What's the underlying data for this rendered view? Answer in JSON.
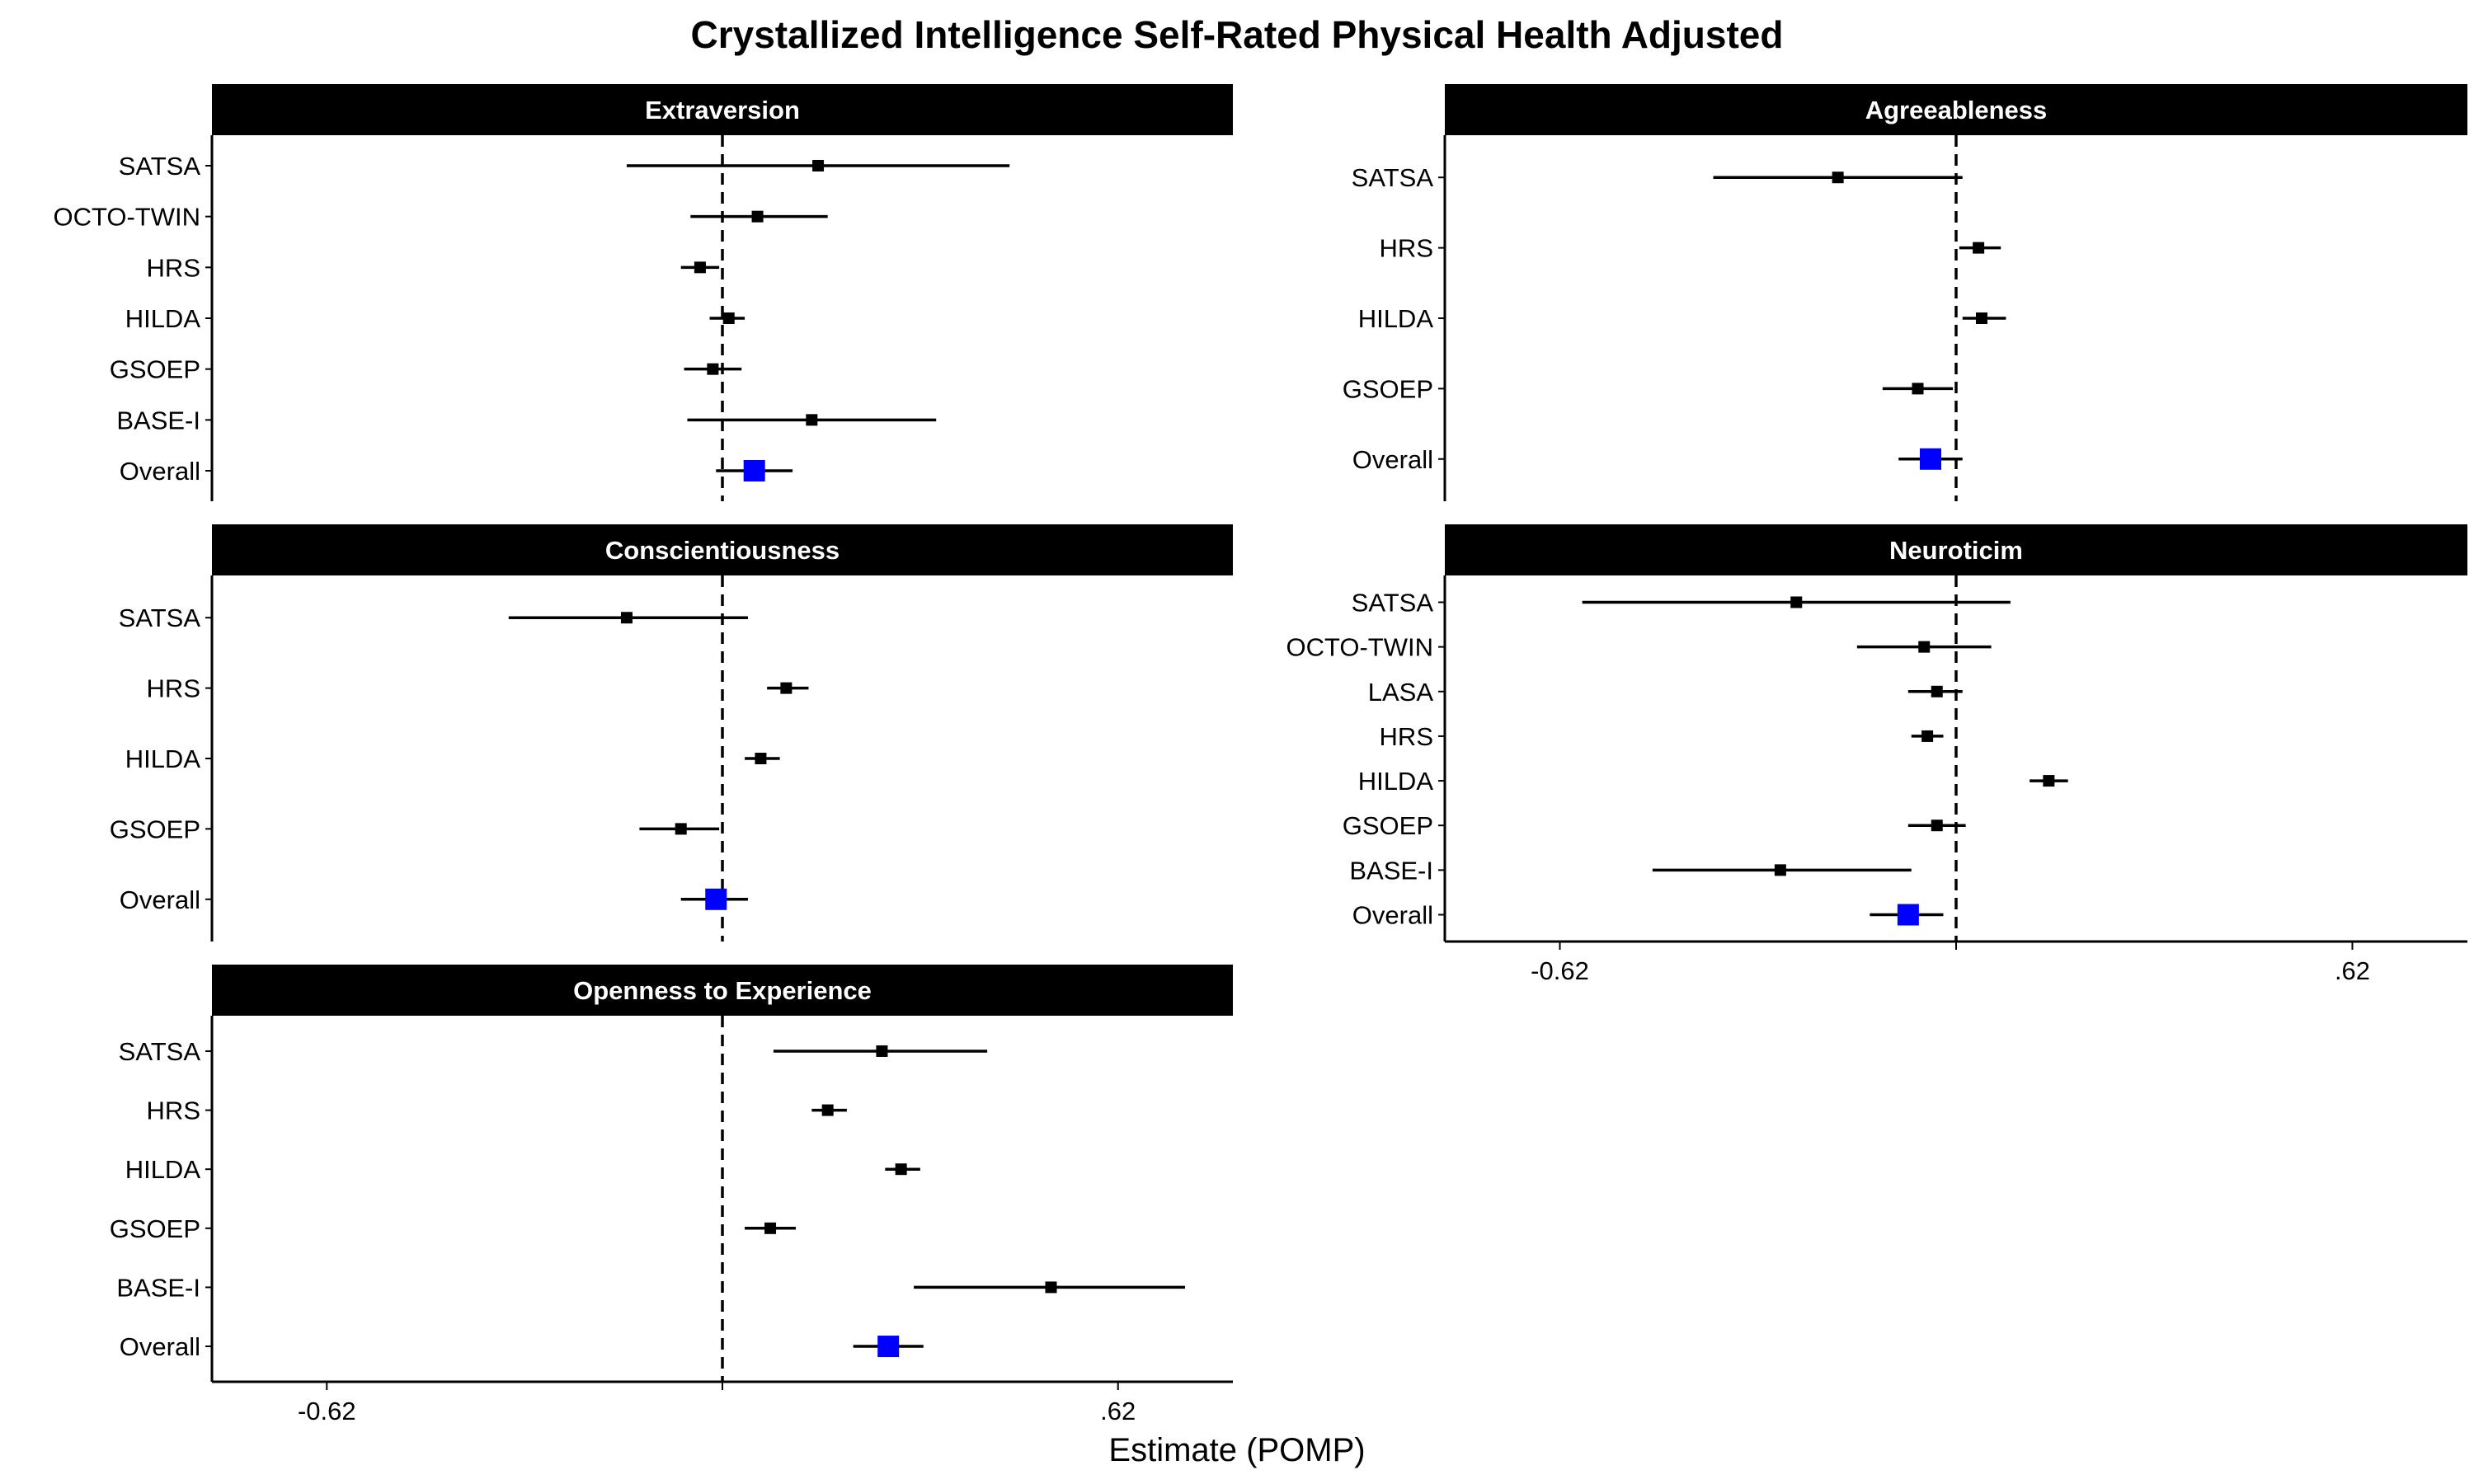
{
  "chart_data": {
    "type": "forest",
    "title": "Crystallized Intelligence Self-Rated Physical Health Adjusted",
    "xlabel": "Estimate (POMP)",
    "xlim": [
      -0.8,
      0.8
    ],
    "xticks": [
      {
        "value": -0.62,
        "label": "-0.62"
      },
      {
        "value": 0.62,
        "label": ".62"
      }
    ],
    "reference_line": 0,
    "colors": {
      "study": "#000000",
      "overall": "#0000ff",
      "strip": "#000000"
    },
    "panels": [
      {
        "name": "Extraversion",
        "rows": [
          {
            "label": "SATSA",
            "estimate": 0.15,
            "lower": -0.15,
            "upper": 0.45
          },
          {
            "label": "OCTO-TWIN",
            "estimate": 0.055,
            "lower": -0.05,
            "upper": 0.165
          },
          {
            "label": "HRS",
            "estimate": -0.035,
            "lower": -0.065,
            "upper": -0.005
          },
          {
            "label": "HILDA",
            "estimate": 0.01,
            "lower": -0.02,
            "upper": 0.035
          },
          {
            "label": "GSOEP",
            "estimate": -0.015,
            "lower": -0.06,
            "upper": 0.03
          },
          {
            "label": "BASE-I",
            "estimate": 0.14,
            "lower": -0.055,
            "upper": 0.335
          },
          {
            "label": "Overall",
            "estimate": 0.05,
            "lower": -0.01,
            "upper": 0.11,
            "overall": true
          }
        ]
      },
      {
        "name": "Agreeableness",
        "rows": [
          {
            "label": "SATSA",
            "estimate": -0.185,
            "lower": -0.38,
            "upper": 0.01
          },
          {
            "label": "HRS",
            "estimate": 0.035,
            "lower": 0.005,
            "upper": 0.07
          },
          {
            "label": "HILDA",
            "estimate": 0.04,
            "lower": 0.01,
            "upper": 0.078
          },
          {
            "label": "GSOEP",
            "estimate": -0.06,
            "lower": -0.115,
            "upper": -0.005
          },
          {
            "label": "Overall",
            "estimate": -0.04,
            "lower": -0.09,
            "upper": 0.01,
            "overall": true
          }
        ]
      },
      {
        "name": "Conscientiousness",
        "rows": [
          {
            "label": "SATSA",
            "estimate": -0.15,
            "lower": -0.335,
            "upper": 0.04
          },
          {
            "label": "HRS",
            "estimate": 0.1,
            "lower": 0.07,
            "upper": 0.135
          },
          {
            "label": "HILDA",
            "estimate": 0.06,
            "lower": 0.035,
            "upper": 0.09
          },
          {
            "label": "GSOEP",
            "estimate": -0.065,
            "lower": -0.13,
            "upper": -0.005
          },
          {
            "label": "Overall",
            "estimate": -0.01,
            "lower": -0.065,
            "upper": 0.04,
            "overall": true
          }
        ]
      },
      {
        "name": "Neuroticim",
        "rows": [
          {
            "label": "SATSA",
            "estimate": -0.25,
            "lower": -0.585,
            "upper": 0.085
          },
          {
            "label": "OCTO-TWIN",
            "estimate": -0.05,
            "lower": -0.155,
            "upper": 0.055
          },
          {
            "label": "LASA",
            "estimate": -0.03,
            "lower": -0.075,
            "upper": 0.01
          },
          {
            "label": "HRS",
            "estimate": -0.045,
            "lower": -0.07,
            "upper": -0.02
          },
          {
            "label": "HILDA",
            "estimate": 0.145,
            "lower": 0.115,
            "upper": 0.175
          },
          {
            "label": "GSOEP",
            "estimate": -0.03,
            "lower": -0.075,
            "upper": 0.015
          },
          {
            "label": "BASE-I",
            "estimate": -0.275,
            "lower": -0.475,
            "upper": -0.07
          },
          {
            "label": "Overall",
            "estimate": -0.075,
            "lower": -0.135,
            "upper": -0.02,
            "overall": true
          }
        ]
      },
      {
        "name": "Openness to Experience",
        "rows": [
          {
            "label": "SATSA",
            "estimate": 0.25,
            "lower": 0.08,
            "upper": 0.415
          },
          {
            "label": "HRS",
            "estimate": 0.165,
            "lower": 0.14,
            "upper": 0.195
          },
          {
            "label": "HILDA",
            "estimate": 0.28,
            "lower": 0.255,
            "upper": 0.31
          },
          {
            "label": "GSOEP",
            "estimate": 0.075,
            "lower": 0.035,
            "upper": 0.115
          },
          {
            "label": "BASE-I",
            "estimate": 0.515,
            "lower": 0.3,
            "upper": 0.725
          },
          {
            "label": "Overall",
            "estimate": 0.26,
            "lower": 0.205,
            "upper": 0.315,
            "overall": true
          }
        ]
      }
    ]
  }
}
